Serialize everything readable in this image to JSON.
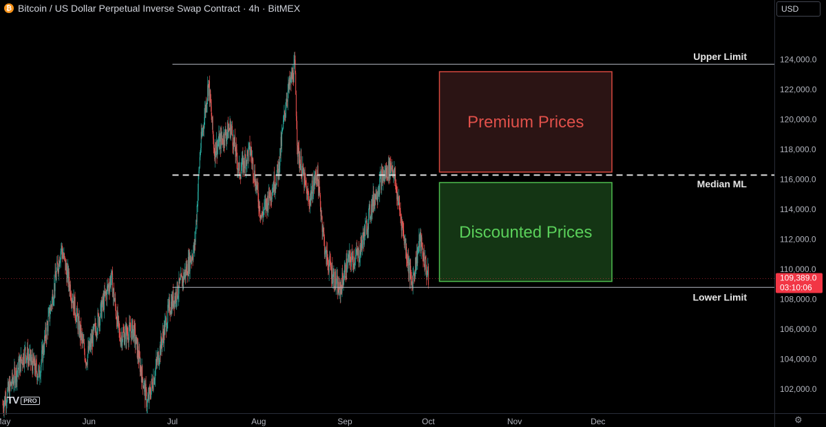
{
  "header": {
    "icon": "bitcoin-icon",
    "title": "Bitcoin / US Dollar Perpetual Inverse Swap Contract · 4h · BitMEX"
  },
  "currency_selector": {
    "value": "USD"
  },
  "branding": {
    "logo": "17",
    "badge": "PRO"
  },
  "colors": {
    "up": "#26a69a",
    "down": "#ef5350",
    "premium_text": "#e0504a",
    "premium_border": "#d9493f",
    "premium_fill": "#2b1414",
    "discount_text": "#5ad05a",
    "discount_border": "#4fbf4f",
    "discount_fill": "#143514",
    "price_tag": "#f23645"
  },
  "chart_data": {
    "type": "candlestick",
    "title": "",
    "y_axis": {
      "ticks": [
        "124,000.0",
        "122,000.0",
        "120,000.0",
        "118,000.0",
        "116,000.0",
        "114,000.0",
        "112,000.0",
        "110,000.0",
        "108,000.0",
        "106,000.0",
        "104,000.0",
        "102,000.0"
      ],
      "tick_values": [
        124000,
        122000,
        120000,
        118000,
        116000,
        114000,
        112000,
        110000,
        108000,
        106000,
        104000,
        102000
      ],
      "range": [
        100400,
        126700
      ]
    },
    "x_axis": {
      "labels": [
        "May",
        "Jun",
        "Jul",
        "Aug",
        "Sep",
        "Oct",
        "Nov",
        "Dec"
      ],
      "range": [
        "2025-05-01",
        "2025-12-31"
      ]
    },
    "price_path": [
      {
        "date": "2025-05-01",
        "price": 101000
      },
      {
        "date": "2025-05-09",
        "price": 104500
      },
      {
        "date": "2025-05-14",
        "price": 103000
      },
      {
        "date": "2025-05-22",
        "price": 111500
      },
      {
        "date": "2025-05-31",
        "price": 104000
      },
      {
        "date": "2025-06-09",
        "price": 109500
      },
      {
        "date": "2025-06-12",
        "price": 105500
      },
      {
        "date": "2025-06-17",
        "price": 106000
      },
      {
        "date": "2025-06-22",
        "price": 101000
      },
      {
        "date": "2025-06-30",
        "price": 107500
      },
      {
        "date": "2025-07-04",
        "price": 109000
      },
      {
        "date": "2025-07-09",
        "price": 111500
      },
      {
        "date": "2025-07-11",
        "price": 118000
      },
      {
        "date": "2025-07-14",
        "price": 122500
      },
      {
        "date": "2025-07-16",
        "price": 118000
      },
      {
        "date": "2025-07-22",
        "price": 119500
      },
      {
        "date": "2025-07-25",
        "price": 116500
      },
      {
        "date": "2025-07-29",
        "price": 118000
      },
      {
        "date": "2025-08-02",
        "price": 113500
      },
      {
        "date": "2025-08-08",
        "price": 116500
      },
      {
        "date": "2025-08-11",
        "price": 121500
      },
      {
        "date": "2025-08-14",
        "price": 123500
      },
      {
        "date": "2025-08-15",
        "price": 118000
      },
      {
        "date": "2025-08-19",
        "price": 114500
      },
      {
        "date": "2025-08-22",
        "price": 116500
      },
      {
        "date": "2025-08-25",
        "price": 111000
      },
      {
        "date": "2025-08-30",
        "price": 108500
      },
      {
        "date": "2025-09-02",
        "price": 110500
      },
      {
        "date": "2025-09-06",
        "price": 111000
      },
      {
        "date": "2025-09-11",
        "price": 114500
      },
      {
        "date": "2025-09-14",
        "price": 116000
      },
      {
        "date": "2025-09-18",
        "price": 117000
      },
      {
        "date": "2025-09-22",
        "price": 112500
      },
      {
        "date": "2025-09-25",
        "price": 109000
      },
      {
        "date": "2025-09-28",
        "price": 112000
      },
      {
        "date": "2025-10-01",
        "price": 109389
      }
    ],
    "levels": [
      {
        "name": "Upper Limit",
        "price": 123700,
        "style": "solid",
        "from": "2025-07-01"
      },
      {
        "name": "Median ML",
        "price": 116300,
        "style": "dashed",
        "from": "2025-07-01"
      },
      {
        "name": "Lower Limit",
        "price": 108800,
        "style": "solid",
        "from": "2025-07-01"
      }
    ],
    "zones": [
      {
        "label": "Premium Prices",
        "kind": "premium",
        "price_top": 123200,
        "price_bottom": 116500,
        "date_start": "2025-10-05",
        "date_end": "2025-12-06"
      },
      {
        "label": "Discounted Prices",
        "kind": "discount",
        "price_top": 115800,
        "price_bottom": 109200,
        "date_start": "2025-10-05",
        "date_end": "2025-12-06"
      }
    ],
    "last_price": {
      "value": 109389.0,
      "label": "109,389.0",
      "countdown": "03:10:06"
    }
  }
}
